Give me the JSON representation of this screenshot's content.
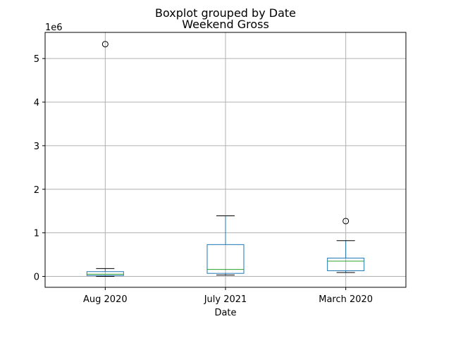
{
  "chart_data": {
    "type": "boxplot",
    "suptitle": "Boxplot grouped by Date",
    "title": "Weekend Gross",
    "xlabel": "Date",
    "ylabel": "",
    "y_offset_label": "1e6",
    "y_scale_factor": 1000000,
    "ylim": [
      -250000,
      5600000
    ],
    "yticks": [
      0,
      1000000,
      2000000,
      3000000,
      4000000,
      5000000
    ],
    "ytick_labels": [
      "0",
      "1",
      "2",
      "3",
      "4",
      "5"
    ],
    "grid": true,
    "categories": [
      "Aug 2020",
      "July 2021",
      "March 2020"
    ],
    "boxes": [
      {
        "category": "Aug 2020",
        "whisker_low": 0,
        "q1": 20000,
        "median": 50000,
        "q3": 110000,
        "whisker_high": 180000,
        "outliers": [
          5330000
        ]
      },
      {
        "category": "July 2021",
        "whisker_low": 30000,
        "q1": 70000,
        "median": 160000,
        "q3": 730000,
        "whisker_high": 1390000,
        "outliers": []
      },
      {
        "category": "March 2020",
        "whisker_low": 90000,
        "q1": 130000,
        "median": 350000,
        "q3": 420000,
        "whisker_high": 820000,
        "outliers": [
          1270000
        ]
      }
    ],
    "colors": {
      "box": "#1f77b4",
      "median": "#2ca02c",
      "whisker_cap": "#000000",
      "grid": "#b0b0b0",
      "flier": "#000000"
    }
  }
}
